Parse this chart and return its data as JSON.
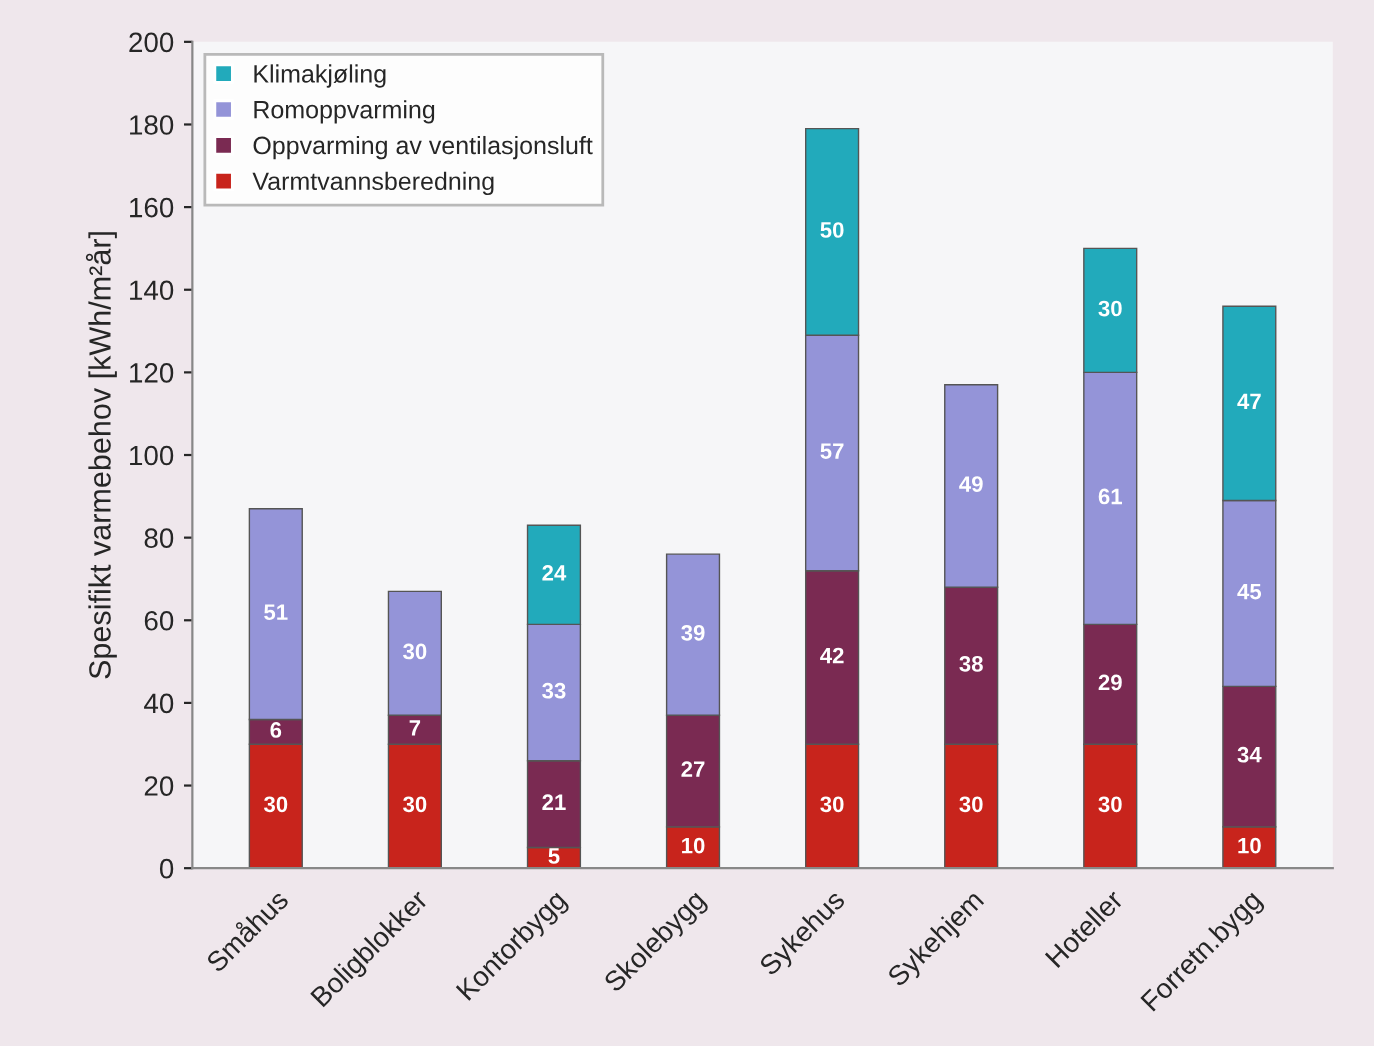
{
  "chart_data": {
    "type": "bar",
    "stacked": true,
    "ylabel": "Spesifikt varmebehov [kWh/m²år]",
    "categories": [
      "Småhus",
      "Boligblokker",
      "Kontorbygg",
      "Skolebygg",
      "Sykehus",
      "Sykehjem",
      "Hoteller",
      "Forretn.bygg"
    ],
    "series": [
      {
        "name": "Varmtvannsberedning",
        "color": "#c8241c",
        "values": [
          30,
          30,
          5,
          10,
          30,
          30,
          30,
          10
        ]
      },
      {
        "name": "Oppvarming av ventilasjonsluft",
        "color": "#7a2a52",
        "values": [
          6,
          7,
          21,
          27,
          42,
          38,
          29,
          34
        ]
      },
      {
        "name": "Romoppvarming",
        "color": "#9494d8",
        "values": [
          51,
          30,
          33,
          39,
          57,
          49,
          61,
          45
        ]
      },
      {
        "name": "Klimakjøling",
        "color": "#22aabb",
        "values": [
          null,
          null,
          24,
          null,
          50,
          null,
          30,
          47
        ]
      }
    ],
    "ylim": [
      0,
      200
    ],
    "yticks": [
      0,
      20,
      40,
      60,
      80,
      100,
      120,
      140,
      160,
      180,
      200
    ],
    "data_labels": true,
    "legend": "top left",
    "grid": false
  }
}
